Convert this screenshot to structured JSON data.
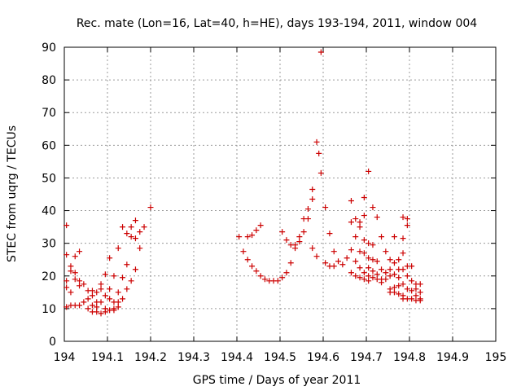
{
  "chart_data": {
    "type": "scatter",
    "title": "Rec. mate (Lon=16, Lat=40, h=HE), days 193-194, 2011, window 004",
    "xlabel": "GPS time / Days of year 2011",
    "ylabel": "STEC from uqrg / TECUs",
    "xlim": [
      194,
      195
    ],
    "ylim": [
      0,
      90
    ],
    "xticks": [
      194,
      194.1,
      194.2,
      194.3,
      194.4,
      194.5,
      194.6,
      194.7,
      194.8,
      194.9,
      195
    ],
    "xtick_labels": [
      "194",
      "194.1",
      "194.2",
      "194.3",
      "194.4",
      "194.5",
      "194.6",
      "194.7",
      "194.8",
      "194.9",
      "195"
    ],
    "yticks": [
      0,
      10,
      20,
      30,
      40,
      50,
      60,
      70,
      80,
      90
    ],
    "ytick_labels": [
      "0",
      "10",
      "20",
      "30",
      "40",
      "50",
      "60",
      "70",
      "80",
      "90"
    ],
    "grid": true,
    "marker": "+",
    "color": "#cc0000",
    "series": [
      {
        "name": "STEC",
        "points": [
          [
            194.005,
            10.5
          ],
          [
            194.005,
            16.5
          ],
          [
            194.005,
            18.5
          ],
          [
            194.005,
            26.5
          ],
          [
            194.005,
            35.5
          ],
          [
            194.015,
            11
          ],
          [
            194.015,
            15
          ],
          [
            194.015,
            21.5
          ],
          [
            194.015,
            23
          ],
          [
            194.025,
            11
          ],
          [
            194.025,
            19
          ],
          [
            194.025,
            21
          ],
          [
            194.025,
            26
          ],
          [
            194.035,
            11
          ],
          [
            194.035,
            17
          ],
          [
            194.035,
            18.5
          ],
          [
            194.035,
            27.5
          ],
          [
            194.045,
            12
          ],
          [
            194.045,
            17.5
          ],
          [
            194.055,
            10
          ],
          [
            194.055,
            13
          ],
          [
            194.055,
            15.5
          ],
          [
            194.065,
            9
          ],
          [
            194.065,
            11
          ],
          [
            194.065,
            14
          ],
          [
            194.065,
            15.5
          ],
          [
            194.075,
            9
          ],
          [
            194.075,
            10.5
          ],
          [
            194.075,
            12
          ],
          [
            194.075,
            15
          ],
          [
            194.085,
            8.5
          ],
          [
            194.085,
            12
          ],
          [
            194.085,
            16
          ],
          [
            194.085,
            17.5
          ],
          [
            194.095,
            9
          ],
          [
            194.095,
            10
          ],
          [
            194.095,
            14
          ],
          [
            194.095,
            20.5
          ],
          [
            194.105,
            9.5
          ],
          [
            194.105,
            13
          ],
          [
            194.105,
            16
          ],
          [
            194.105,
            25.5
          ],
          [
            194.115,
            9.5
          ],
          [
            194.115,
            10
          ],
          [
            194.115,
            12
          ],
          [
            194.115,
            20
          ],
          [
            194.125,
            10.5
          ],
          [
            194.125,
            12
          ],
          [
            194.125,
            15
          ],
          [
            194.125,
            28.5
          ],
          [
            194.135,
            13
          ],
          [
            194.135,
            19.5
          ],
          [
            194.135,
            35
          ],
          [
            194.145,
            16
          ],
          [
            194.145,
            23.5
          ],
          [
            194.145,
            33
          ],
          [
            194.155,
            18.5
          ],
          [
            194.155,
            32
          ],
          [
            194.155,
            35
          ],
          [
            194.165,
            22
          ],
          [
            194.165,
            31.5
          ],
          [
            194.165,
            37
          ],
          [
            194.175,
            28.5
          ],
          [
            194.175,
            33.5
          ],
          [
            194.185,
            35
          ],
          [
            194.2,
            41
          ],
          [
            194.405,
            32
          ],
          [
            194.415,
            27.5
          ],
          [
            194.425,
            25
          ],
          [
            194.425,
            32
          ],
          [
            194.435,
            23
          ],
          [
            194.435,
            32.5
          ],
          [
            194.445,
            21.5
          ],
          [
            194.445,
            34
          ],
          [
            194.455,
            20
          ],
          [
            194.455,
            35.5
          ],
          [
            194.465,
            19
          ],
          [
            194.475,
            18.5
          ],
          [
            194.485,
            18.5
          ],
          [
            194.495,
            18.5
          ],
          [
            194.505,
            33.5
          ],
          [
            194.505,
            19.5
          ],
          [
            194.515,
            31
          ],
          [
            194.515,
            21
          ],
          [
            194.525,
            29.5
          ],
          [
            194.525,
            24
          ],
          [
            194.535,
            28.5
          ],
          [
            194.535,
            29.5
          ],
          [
            194.545,
            30.5
          ],
          [
            194.545,
            32
          ],
          [
            194.555,
            33.5
          ],
          [
            194.555,
            37.5
          ],
          [
            194.565,
            37.5
          ],
          [
            194.565,
            40.5
          ],
          [
            194.575,
            43.5
          ],
          [
            194.575,
            46.5
          ],
          [
            194.575,
            28.5
          ],
          [
            194.585,
            61
          ],
          [
            194.585,
            26
          ],
          [
            194.59,
            57.5
          ],
          [
            194.595,
            51.5
          ],
          [
            194.595,
            88.5
          ],
          [
            194.605,
            41
          ],
          [
            194.605,
            24
          ],
          [
            194.615,
            33
          ],
          [
            194.615,
            23
          ],
          [
            194.625,
            27.5
          ],
          [
            194.625,
            23
          ],
          [
            194.635,
            24.5
          ],
          [
            194.645,
            23.5
          ],
          [
            194.655,
            25.5
          ],
          [
            194.665,
            36.5
          ],
          [
            194.665,
            43
          ],
          [
            194.665,
            28
          ],
          [
            194.665,
            21
          ],
          [
            194.675,
            32
          ],
          [
            194.675,
            37.5
          ],
          [
            194.675,
            24.5
          ],
          [
            194.675,
            20
          ],
          [
            194.685,
            35
          ],
          [
            194.685,
            36.5
          ],
          [
            194.685,
            27.5
          ],
          [
            194.685,
            22.5
          ],
          [
            194.685,
            19.5
          ],
          [
            194.695,
            44
          ],
          [
            194.695,
            38.5
          ],
          [
            194.695,
            31
          ],
          [
            194.695,
            27
          ],
          [
            194.695,
            21
          ],
          [
            194.695,
            19
          ],
          [
            194.705,
            52
          ],
          [
            194.705,
            30
          ],
          [
            194.705,
            25.5
          ],
          [
            194.705,
            22.5
          ],
          [
            194.705,
            20
          ],
          [
            194.705,
            18.5
          ],
          [
            194.715,
            41
          ],
          [
            194.715,
            29.5
          ],
          [
            194.715,
            25
          ],
          [
            194.715,
            21.5
          ],
          [
            194.715,
            19.5
          ],
          [
            194.725,
            38
          ],
          [
            194.725,
            24.5
          ],
          [
            194.725,
            20.5
          ],
          [
            194.725,
            19
          ],
          [
            194.735,
            32
          ],
          [
            194.735,
            22
          ],
          [
            194.735,
            19
          ],
          [
            194.735,
            18
          ],
          [
            194.745,
            27.5
          ],
          [
            194.745,
            21
          ],
          [
            194.745,
            19
          ],
          [
            194.755,
            25
          ],
          [
            194.755,
            22
          ],
          [
            194.755,
            20
          ],
          [
            194.755,
            16
          ],
          [
            194.755,
            15
          ],
          [
            194.765,
            32
          ],
          [
            194.765,
            24
          ],
          [
            194.765,
            20.5
          ],
          [
            194.765,
            16.5
          ],
          [
            194.765,
            15
          ],
          [
            194.775,
            25
          ],
          [
            194.775,
            22
          ],
          [
            194.775,
            19.5
          ],
          [
            194.775,
            17
          ],
          [
            194.775,
            14.5
          ],
          [
            194.785,
            38
          ],
          [
            194.785,
            31.5
          ],
          [
            194.785,
            27
          ],
          [
            194.785,
            22
          ],
          [
            194.785,
            17.5
          ],
          [
            194.785,
            14
          ],
          [
            194.785,
            13
          ],
          [
            194.795,
            37.5
          ],
          [
            194.795,
            35.5
          ],
          [
            194.795,
            23
          ],
          [
            194.795,
            20
          ],
          [
            194.795,
            16
          ],
          [
            194.795,
            13
          ],
          [
            194.805,
            23
          ],
          [
            194.805,
            18.5
          ],
          [
            194.805,
            15.5
          ],
          [
            194.805,
            13
          ],
          [
            194.815,
            17.5
          ],
          [
            194.815,
            16
          ],
          [
            194.815,
            14
          ],
          [
            194.815,
            12.5
          ],
          [
            194.825,
            17.5
          ],
          [
            194.825,
            15
          ],
          [
            194.825,
            13
          ],
          [
            194.825,
            12.5
          ]
        ]
      }
    ]
  }
}
